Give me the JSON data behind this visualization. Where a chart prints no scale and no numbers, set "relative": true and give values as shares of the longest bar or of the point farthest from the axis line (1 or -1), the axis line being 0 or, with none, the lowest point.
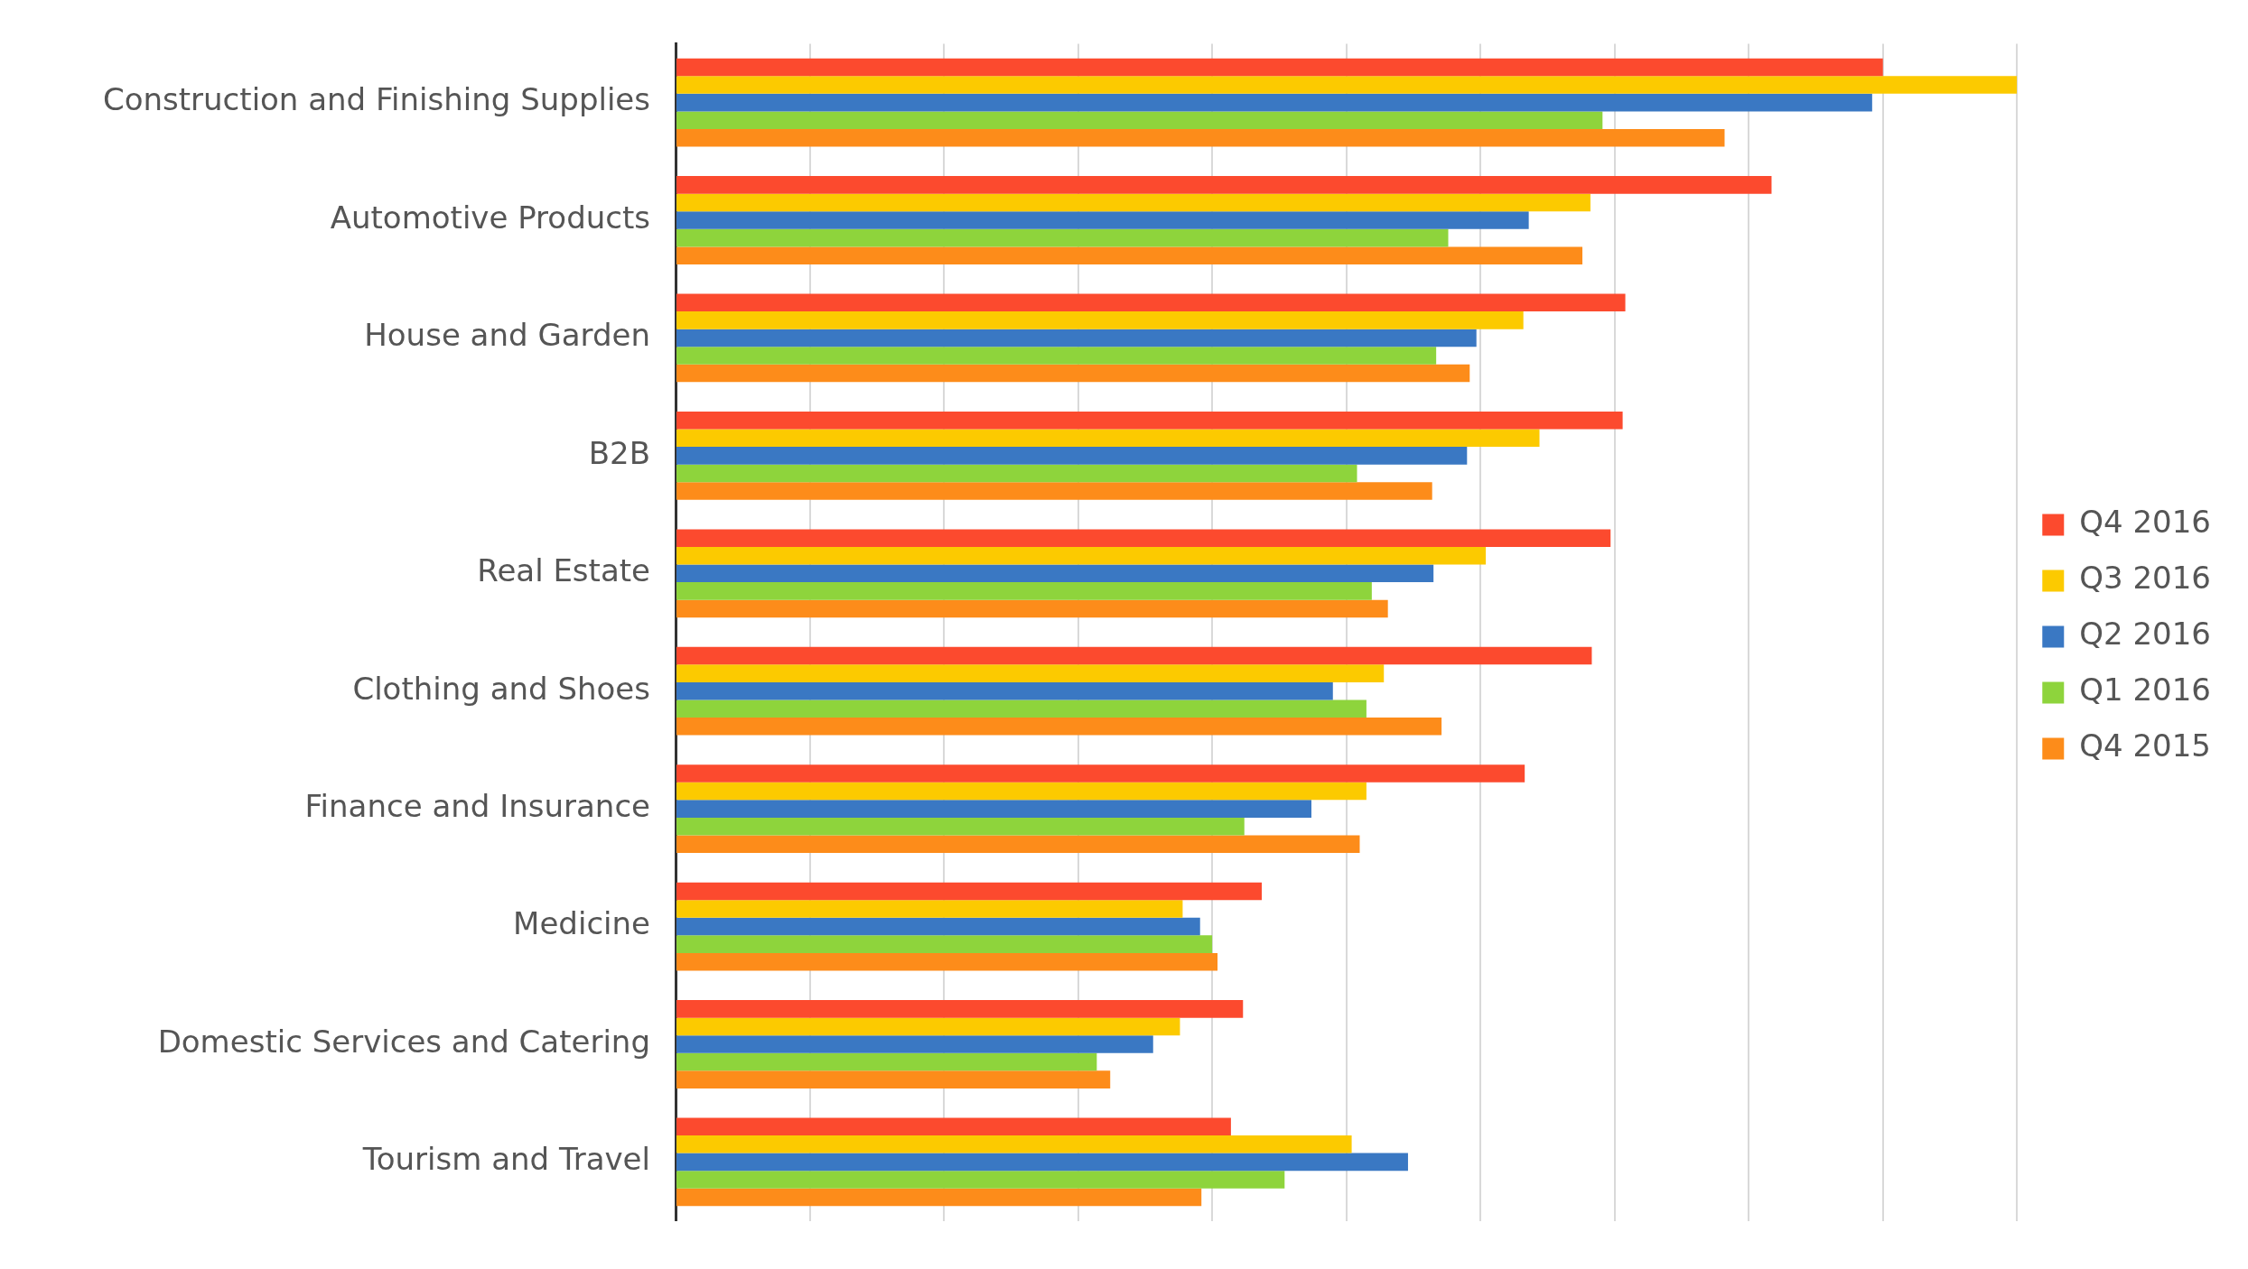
{
  "chart_data": {
    "type": "bar",
    "orientation": "horizontal",
    "relative": true,
    "grid": "x",
    "legend": "right",
    "categories": [
      "Construction and Finishing Supplies",
      "Automotive Products",
      "House and Garden",
      "B2B",
      "Real Estate",
      "Clothing and Shoes",
      "Finance and Insurance",
      "Medicine",
      "Domestic Services and Catering",
      "Tourism and Travel"
    ],
    "series": [
      {
        "name": "Q4 2016",
        "color": "#fc4a2e",
        "values": [
          0.9,
          0.817,
          0.708,
          0.706,
          0.697,
          0.683,
          0.633,
          0.437,
          0.423,
          0.414
        ]
      },
      {
        "name": "Q3 2016",
        "color": "#fcca00",
        "values": [
          1.0,
          0.682,
          0.632,
          0.644,
          0.604,
          0.528,
          0.515,
          0.378,
          0.376,
          0.504
        ]
      },
      {
        "name": "Q2 2016",
        "color": "#3a78c3",
        "values": [
          0.892,
          0.636,
          0.597,
          0.59,
          0.565,
          0.49,
          0.474,
          0.391,
          0.356,
          0.546
        ]
      },
      {
        "name": "Q1 2016",
        "color": "#8ed43c",
        "values": [
          0.691,
          0.576,
          0.567,
          0.508,
          0.519,
          0.515,
          0.424,
          0.4,
          0.314,
          0.454
        ]
      },
      {
        "name": "Q4 2015",
        "color": "#fd8c1a",
        "values": [
          0.782,
          0.676,
          0.592,
          0.564,
          0.531,
          0.571,
          0.51,
          0.404,
          0.324,
          0.392
        ]
      }
    ]
  }
}
